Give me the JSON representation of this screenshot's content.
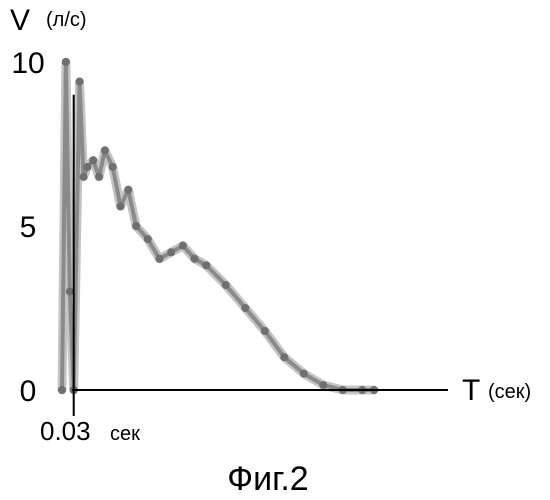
{
  "caption": "Фиг.2",
  "chart_data": {
    "type": "line",
    "title": "",
    "ylabel": {
      "symbol": "V",
      "unit": "(л/с)"
    },
    "xlabel": {
      "symbol": "T",
      "unit": "(сек)"
    },
    "ylim": [
      0,
      10
    ],
    "xlim": [
      0,
      1.0
    ],
    "yticks": [
      {
        "value": 0,
        "label": "0"
      },
      {
        "value": 5,
        "label": "5"
      },
      {
        "value": 10,
        "label": "10"
      }
    ],
    "marker": {
      "x": 0.03,
      "value_label": "0.03",
      "unit_label": "сек"
    },
    "grid": false,
    "colors": {
      "curve": "#8a8a8a",
      "axis": "#000000"
    },
    "series": [
      {
        "x": [
          0.0,
          0.01,
          0.02,
          0.03,
          0.045,
          0.055,
          0.065,
          0.08,
          0.095,
          0.11,
          0.13,
          0.15,
          0.17,
          0.19,
          0.22,
          0.25,
          0.28,
          0.31,
          0.34,
          0.37,
          0.42,
          0.47,
          0.52,
          0.57,
          0.62,
          0.67,
          0.72,
          0.77,
          0.8
        ],
        "y": [
          0.0,
          10.0,
          3.0,
          0.0,
          9.4,
          6.5,
          6.8,
          7.0,
          6.5,
          7.3,
          6.8,
          5.6,
          6.1,
          5.0,
          4.6,
          4.0,
          4.2,
          4.4,
          4.0,
          3.8,
          3.2,
          2.5,
          1.8,
          1.0,
          0.5,
          0.15,
          0.0,
          0.0,
          0.0
        ]
      }
    ]
  }
}
